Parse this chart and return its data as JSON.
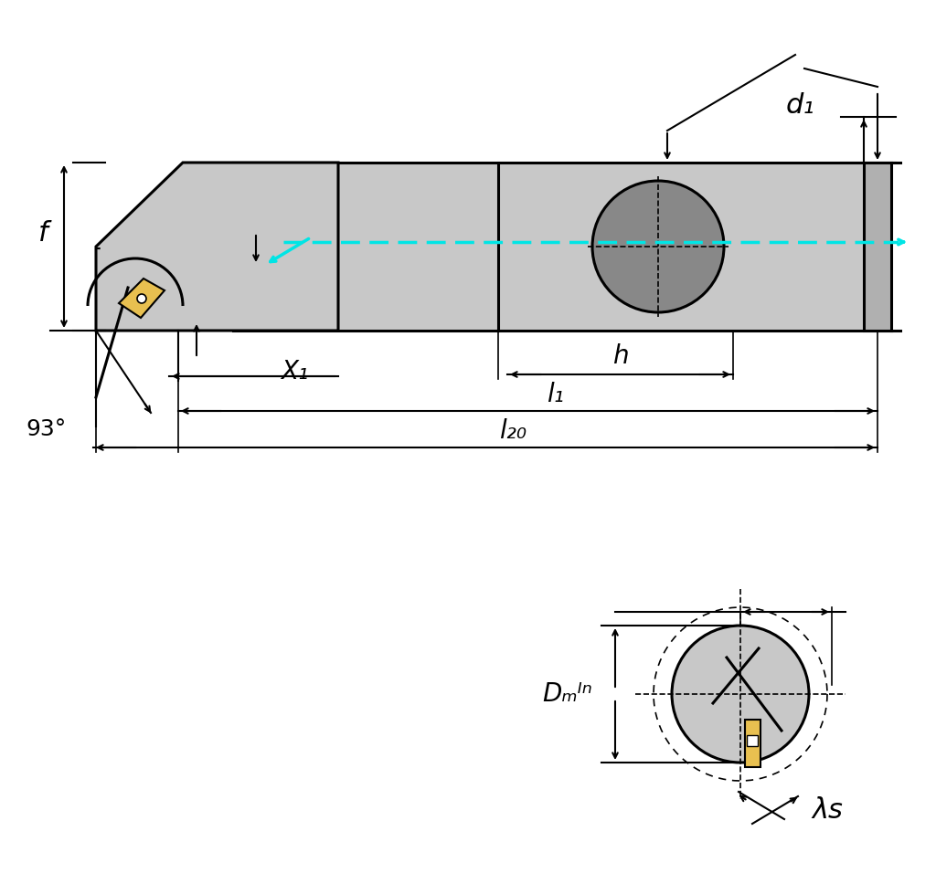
{
  "bg_color": "#ffffff",
  "line_color": "#000000",
  "gray_fill": "#c8c8c8",
  "dark_gray_fill": "#888888",
  "gold_fill": "#e8c050",
  "cyan_color": "#00e5e5",
  "title": "",
  "labels": {
    "f": "f",
    "X1": "X₁",
    "l1": "l₁",
    "l20": "l₂₀",
    "h": "h",
    "d1": "d₁",
    "Dmin": "Dₘᴵⁿ",
    "lambda_s": "λs",
    "angle": "93°"
  }
}
